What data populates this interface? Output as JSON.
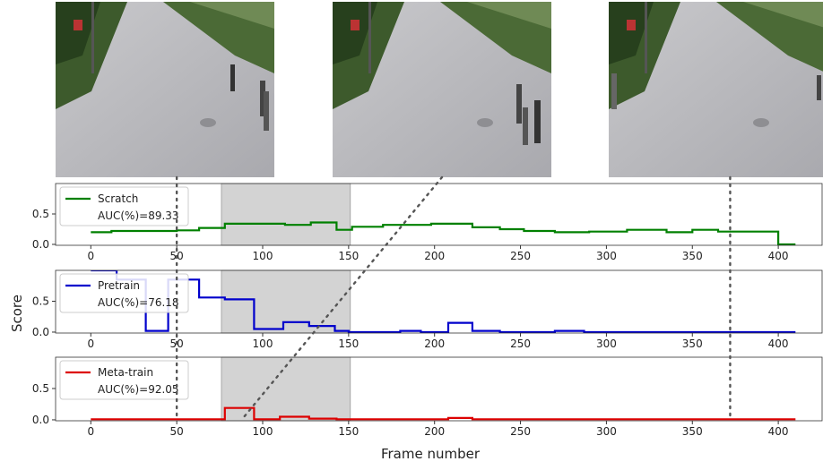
{
  "xlabel": "Frame number",
  "ylabel": "Score",
  "frame_markers": [
    50,
    89,
    372
  ],
  "chart_data": [
    {
      "type": "line",
      "legend": "upper left",
      "shaded_span": [
        76,
        151
      ],
      "x": [
        0,
        12,
        12,
        50,
        50,
        63,
        63,
        78,
        78,
        113,
        113,
        128,
        128,
        143,
        143,
        152,
        152,
        170,
        170,
        198,
        198,
        222,
        222,
        238,
        238,
        252,
        252,
        270,
        270,
        290,
        290,
        312,
        312,
        335,
        335,
        350,
        350,
        365,
        365,
        400,
        400,
        410
      ],
      "series": [
        {
          "name": "Scratch",
          "annotation": "AUC(%)=89.33",
          "color": "#008000",
          "values": [
            0.2,
            0.2,
            0.22,
            0.22,
            0.23,
            0.23,
            0.27,
            0.27,
            0.34,
            0.34,
            0.32,
            0.32,
            0.36,
            0.36,
            0.24,
            0.24,
            0.29,
            0.29,
            0.32,
            0.32,
            0.34,
            0.34,
            0.28,
            0.28,
            0.25,
            0.25,
            0.22,
            0.22,
            0.2,
            0.2,
            0.21,
            0.21,
            0.24,
            0.24,
            0.2,
            0.2,
            0.24,
            0.24,
            0.21,
            0.21,
            0,
            0
          ]
        }
      ],
      "xlim": [
        -20.5,
        425.5
      ],
      "ylim": [
        -0.015,
        1.0
      ],
      "xticks": [
        0,
        50,
        100,
        150,
        200,
        250,
        300,
        350,
        400
      ],
      "yticks": [
        0.0,
        0.5
      ]
    },
    {
      "type": "line",
      "legend": "upper left",
      "shaded_span": [
        76,
        151
      ],
      "x": [
        0,
        15,
        15,
        32,
        32,
        45,
        45,
        63,
        63,
        78,
        78,
        95,
        95,
        112,
        112,
        127,
        127,
        142,
        142,
        150,
        150,
        180,
        180,
        192,
        192,
        208,
        208,
        222,
        222,
        238,
        238,
        270,
        270,
        287,
        287,
        410
      ],
      "series": [
        {
          "name": "Pretrain",
          "annotation": "AUC(%)=76.18",
          "color": "#0000cc",
          "values": [
            1.0,
            1.0,
            0.85,
            0.85,
            0.02,
            0.02,
            0.85,
            0.85,
            0.56,
            0.56,
            0.53,
            0.53,
            0.05,
            0.05,
            0.16,
            0.16,
            0.1,
            0.1,
            0.02,
            0.02,
            0,
            0,
            0.02,
            0.02,
            0,
            0,
            0.15,
            0.15,
            0.02,
            0.02,
            0,
            0,
            0.02,
            0.02,
            0,
            0
          ]
        }
      ],
      "xlim": [
        -20.5,
        425.5
      ],
      "ylim": [
        -0.015,
        1.0
      ],
      "xticks": [
        0,
        50,
        100,
        150,
        200,
        250,
        300,
        350,
        400
      ],
      "yticks": [
        0.0,
        0.5
      ]
    },
    {
      "type": "line",
      "legend": "upper left",
      "shaded_span": [
        76,
        151
      ],
      "x": [
        0,
        78,
        78,
        95,
        95,
        110,
        110,
        127,
        127,
        143,
        143,
        208,
        208,
        222,
        222,
        410
      ],
      "series": [
        {
          "name": "Meta-train",
          "annotation": "AUC(%)=92.05",
          "color": "#dd0000",
          "values": [
            0.01,
            0.01,
            0.19,
            0.19,
            0.01,
            0.01,
            0.05,
            0.05,
            0.02,
            0.02,
            0.01,
            0.01,
            0.03,
            0.03,
            0.01,
            0.01
          ]
        }
      ],
      "xlim": [
        -20.5,
        425.5
      ],
      "ylim": [
        -0.015,
        1.0
      ],
      "xticks": [
        0,
        50,
        100,
        150,
        200,
        250,
        300,
        350,
        400
      ],
      "yticks": [
        0.0,
        0.5
      ]
    }
  ]
}
